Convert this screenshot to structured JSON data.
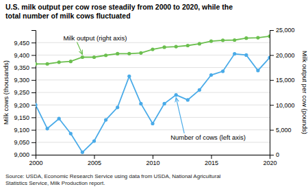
{
  "chart_data": {
    "type": "line",
    "title": "U.S. milk output per cow rose steadily from 2000 to 2020, while the\ntotal number of milk cows fluctuated",
    "source": "Source: USDA, Economic Research Service using data from USDA, National Agricultural\nStatistics Service, Milk Production report.",
    "ylabel": "Milk cows (thousands)",
    "y2label": "Milk output per cow (pounds)",
    "x": [
      2000,
      2001,
      2002,
      2003,
      2004,
      2005,
      2006,
      2007,
      2008,
      2009,
      2010,
      2011,
      2012,
      2013,
      2014,
      2015,
      2016,
      2017,
      2018,
      2019,
      2020
    ],
    "series": [
      {
        "color": "#4AABE8",
        "marker": "circle",
        "axis": "y",
        "values": [
          9200,
          9105,
          9145,
          9085,
          9010,
          9055,
          9140,
          9190,
          9315,
          9205,
          9125,
          9205,
          9240,
          9220,
          9260,
          9320,
          9335,
          9405,
          9400,
          9338,
          9390
        ]
      },
      {
        "color": "#6BBF4E",
        "marker": "circle",
        "axis": "y2",
        "values": [
          18204,
          18234,
          18564,
          18722,
          19576,
          19576,
          19951,
          20267,
          20279,
          20425,
          21149,
          21578,
          21697,
          21909,
          22258,
          22788,
          22960,
          23007,
          23391,
          23476,
          23777
        ]
      }
    ],
    "xlim": [
      2000,
      2020
    ],
    "xticks": [
      2000,
      2005,
      2010,
      2015,
      2020
    ],
    "ylim": [
      9000,
      9500
    ],
    "yticks": [
      {
        "value": 9000,
        "label": "9,000"
      },
      {
        "value": 9050,
        "label": "9,050"
      },
      {
        "value": 9100,
        "label": "9,100"
      },
      {
        "value": 9150,
        "label": "9,150"
      },
      {
        "value": 9200,
        "label": "9,200"
      },
      {
        "value": 9250,
        "label": "9,250"
      },
      {
        "value": 9300,
        "label": "9,300"
      },
      {
        "value": 9350,
        "label": "9,350"
      },
      {
        "value": 9400,
        "label": "9,400"
      },
      {
        "value": 9450,
        "label": "9,450"
      }
    ],
    "y2lim": [
      0,
      25000
    ],
    "y2ticks": [
      0,
      {
        "value": 5000,
        "label": "5,000"
      },
      {
        "value": 10000,
        "label": "10,000"
      },
      {
        "value": 15000,
        "label": "15,000"
      },
      {
        "value": 20000,
        "label": "20,000"
      },
      {
        "value": 25000,
        "label": "25,000"
      }
    ],
    "grid": true,
    "annotations": [
      {
        "text": "Milk output (right axis)",
        "x": 2004,
        "axis": "y2"
      },
      {
        "text": "Number of cows (left axis)",
        "x": 2012,
        "axis": "y"
      }
    ]
  }
}
